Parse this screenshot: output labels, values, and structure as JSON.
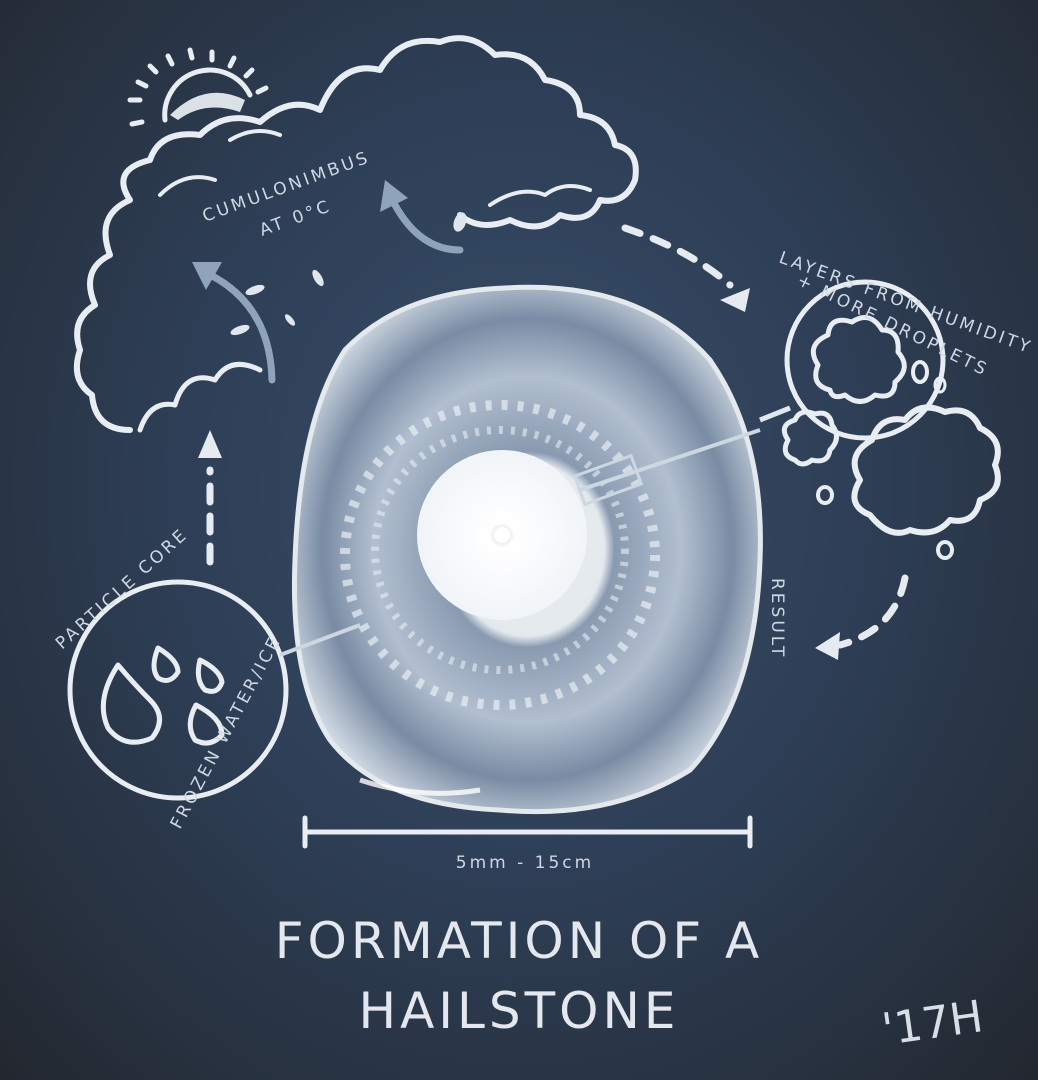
{
  "title": {
    "line1": "FORMATION OF A",
    "line2": "HAILSTONE"
  },
  "labels": {
    "cloud": {
      "line1": "CUMULONIMBUS",
      "line2": "AT 0°C"
    },
    "layers": {
      "line1": "LAYERS FROM HUMIDITY",
      "line2": "+ MORE DROPLETS"
    },
    "core": {
      "line1": "PARTICLE CORE",
      "line2": "FROZEN WATER/ICE"
    },
    "result": "RESULT",
    "scale": "5mm - 15cm"
  },
  "signature": "'17H",
  "colors": {
    "chalk": "#e8edf3",
    "background": "#2e3f57",
    "label": "#cfd8e3"
  },
  "icons": [
    "sun-icon",
    "cloud-icon",
    "droplet-icon",
    "arrow-icon",
    "hailstone-icon"
  ]
}
